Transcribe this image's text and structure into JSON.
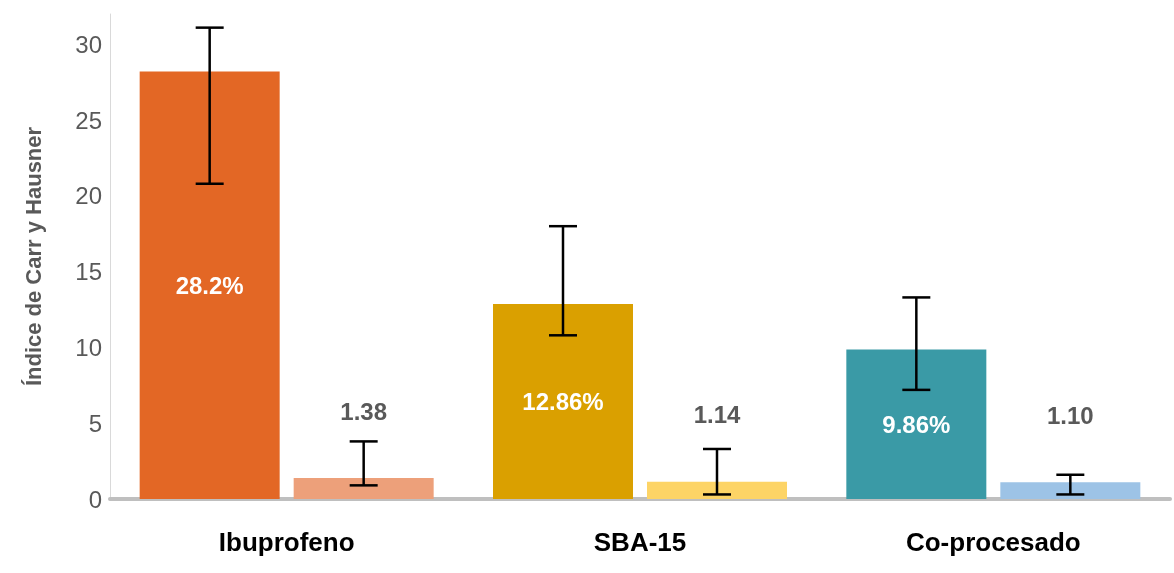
{
  "chart_data": {
    "type": "bar",
    "ylabel": "Índice de Carr y Hausner",
    "categories": [
      "Ibuprofeno",
      "SBA-15",
      "Co-procesado"
    ],
    "series": [
      {
        "colors": [
          "#e36725",
          "#daa000",
          "#3a9aa6"
        ],
        "values": [
          28.2,
          12.86,
          9.86
        ],
        "value_labels": [
          "28.2%",
          "12.86%",
          "9.86%"
        ],
        "errors": [
          [
            20.8,
            31.1
          ],
          [
            10.8,
            18.0
          ],
          [
            7.2,
            13.3
          ]
        ]
      },
      {
        "colors": [
          "#eda07a",
          "#fdd466",
          "#9dc3e6"
        ],
        "values": [
          1.38,
          1.14,
          1.1
        ],
        "value_labels": [
          "1.38",
          "1.14",
          "1.10"
        ],
        "errors": [
          [
            0.9,
            3.8
          ],
          [
            0.3,
            3.3
          ],
          [
            0.3,
            1.6
          ]
        ]
      }
    ],
    "ylim": [
      0,
      32
    ],
    "yticks": [
      0,
      5,
      10,
      15,
      20,
      25,
      30
    ],
    "grid": false
  }
}
